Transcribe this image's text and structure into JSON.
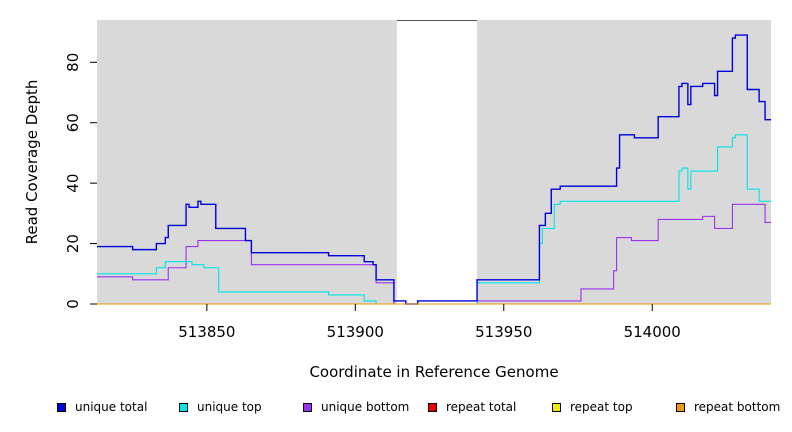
{
  "chart_data": {
    "type": "line",
    "xlabel": "Coordinate in Reference Genome",
    "ylabel": "Read Coverage Depth",
    "xlim": [
      513813,
      514040
    ],
    "ylim": [
      0,
      94
    ],
    "x_ticks": [
      513850,
      513900,
      513950,
      514000
    ],
    "y_ticks": [
      0,
      20,
      40,
      60,
      80
    ],
    "unshaded_region": [
      513914,
      513941
    ],
    "background": "#d9d9d9",
    "legend_position": "bottom",
    "series": [
      {
        "name": "unique total",
        "color": "#0000dd",
        "step_points": [
          [
            513813,
            19
          ],
          [
            513825,
            18
          ],
          [
            513833,
            20
          ],
          [
            513836,
            22
          ],
          [
            513837,
            26
          ],
          [
            513843,
            33
          ],
          [
            513844,
            32
          ],
          [
            513847,
            34
          ],
          [
            513848,
            33
          ],
          [
            513853,
            25
          ],
          [
            513863,
            21
          ],
          [
            513865,
            17
          ],
          [
            513891,
            16
          ],
          [
            513903,
            14
          ],
          [
            513906,
            13
          ],
          [
            513907,
            8
          ],
          [
            513913,
            1
          ],
          [
            513917,
            0
          ],
          [
            513921,
            1
          ],
          [
            513941,
            8
          ],
          [
            513962,
            26
          ],
          [
            513964,
            30
          ],
          [
            513966,
            38
          ],
          [
            513969,
            39
          ],
          [
            513988,
            45
          ],
          [
            513989,
            56
          ],
          [
            513994,
            55
          ],
          [
            514002,
            62
          ],
          [
            514009,
            72
          ],
          [
            514010,
            73
          ],
          [
            514012,
            66
          ],
          [
            514013,
            72
          ],
          [
            514017,
            73
          ],
          [
            514021,
            69
          ],
          [
            514022,
            77
          ],
          [
            514027,
            88
          ],
          [
            514028,
            89
          ],
          [
            514032,
            71
          ],
          [
            514036,
            67
          ],
          [
            514038,
            61
          ],
          [
            514040,
            61
          ]
        ]
      },
      {
        "name": "unique top",
        "color": "#00e5e5",
        "step_points": [
          [
            513813,
            10
          ],
          [
            513833,
            12
          ],
          [
            513836,
            14
          ],
          [
            513845,
            13
          ],
          [
            513849,
            12
          ],
          [
            513854,
            4
          ],
          [
            513891,
            3
          ],
          [
            513903,
            1
          ],
          [
            513907,
            0
          ],
          [
            513941,
            7
          ],
          [
            513962,
            20
          ],
          [
            513963,
            25
          ],
          [
            513967,
            33
          ],
          [
            513969,
            34
          ],
          [
            514009,
            44
          ],
          [
            514010,
            45
          ],
          [
            514012,
            38
          ],
          [
            514013,
            44
          ],
          [
            514022,
            52
          ],
          [
            514027,
            55
          ],
          [
            514028,
            56
          ],
          [
            514032,
            38
          ],
          [
            514036,
            34
          ],
          [
            514040,
            34
          ]
        ]
      },
      {
        "name": "unique bottom",
        "color": "#9933ee",
        "step_points": [
          [
            513813,
            9
          ],
          [
            513825,
            8
          ],
          [
            513837,
            12
          ],
          [
            513843,
            19
          ],
          [
            513847,
            21
          ],
          [
            513865,
            13
          ],
          [
            513907,
            7
          ],
          [
            513913,
            0
          ],
          [
            513941,
            1
          ],
          [
            513963,
            1
          ],
          [
            513976,
            5
          ],
          [
            513987,
            11
          ],
          [
            513988,
            22
          ],
          [
            513993,
            21
          ],
          [
            514002,
            28
          ],
          [
            514017,
            29
          ],
          [
            514021,
            25
          ],
          [
            514027,
            33
          ],
          [
            514038,
            27
          ],
          [
            514040,
            27
          ]
        ]
      },
      {
        "name": "repeat total",
        "color": "#ee0000",
        "step_points": [
          [
            513813,
            0
          ],
          [
            514040,
            0
          ]
        ]
      },
      {
        "name": "repeat top",
        "color": "#eeee00",
        "step_points": [
          [
            513813,
            0
          ],
          [
            514040,
            0
          ]
        ]
      },
      {
        "name": "repeat bottom",
        "color": "#ee9900",
        "step_points": [
          [
            513813,
            0
          ],
          [
            514040,
            0
          ]
        ]
      }
    ]
  }
}
